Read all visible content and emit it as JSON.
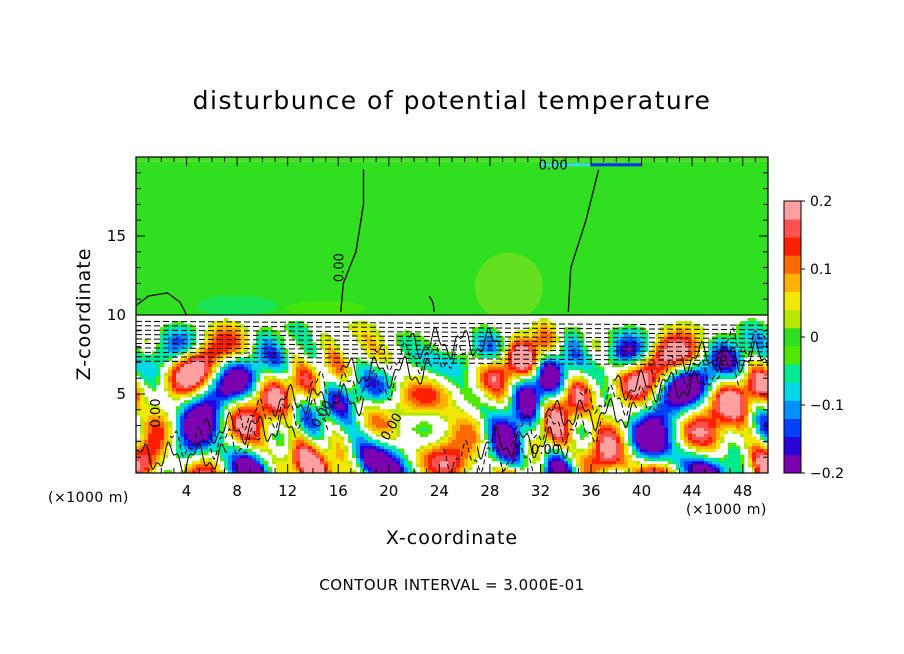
{
  "chart_data": {
    "type": "heatmap",
    "title": "disturbunce of potential temperature",
    "xlabel": "X-coordinate",
    "ylabel": "Z-coordinate",
    "x_unit_label": "(×1000 m)",
    "xlim": [
      0,
      50
    ],
    "ylim": [
      0,
      20
    ],
    "x_ticks": [
      4,
      8,
      12,
      16,
      20,
      24,
      28,
      32,
      36,
      40,
      44,
      48
    ],
    "y_ticks": [
      5,
      10,
      15
    ],
    "colorbar": {
      "range": [
        -0.2,
        0.2
      ],
      "tick_values": [
        0.2,
        0.1,
        0,
        -0.1,
        -0.2
      ],
      "tick_labels": [
        "0.2",
        "0.1",
        "0",
        "−0.1",
        "−0.2"
      ],
      "colors": [
        "#7a00b0",
        "#2a00d8",
        "#0040ff",
        "#0090ff",
        "#00d8e8",
        "#00e890",
        "#50e800",
        "#30e020",
        "#b8e800",
        "#f0e800",
        "#ffb000",
        "#ff6a00",
        "#ff2000",
        "#ff5050",
        "#ffa0a0"
      ]
    },
    "contour_label": "0.00",
    "contour_interval_text": "CONTOUR INTERVAL = 3.000E-01",
    "regions": [
      {
        "name": "upper layer",
        "z_range": [
          10,
          19.7
        ],
        "value": 0.0
      },
      {
        "name": "lower turbulent layer",
        "z_range": [
          0,
          10
        ],
        "value_range": [
          -0.2,
          0.2
        ]
      }
    ]
  },
  "colors": {
    "background": "#ffffff",
    "upper_field": "#30e020",
    "frame": "#000000"
  }
}
